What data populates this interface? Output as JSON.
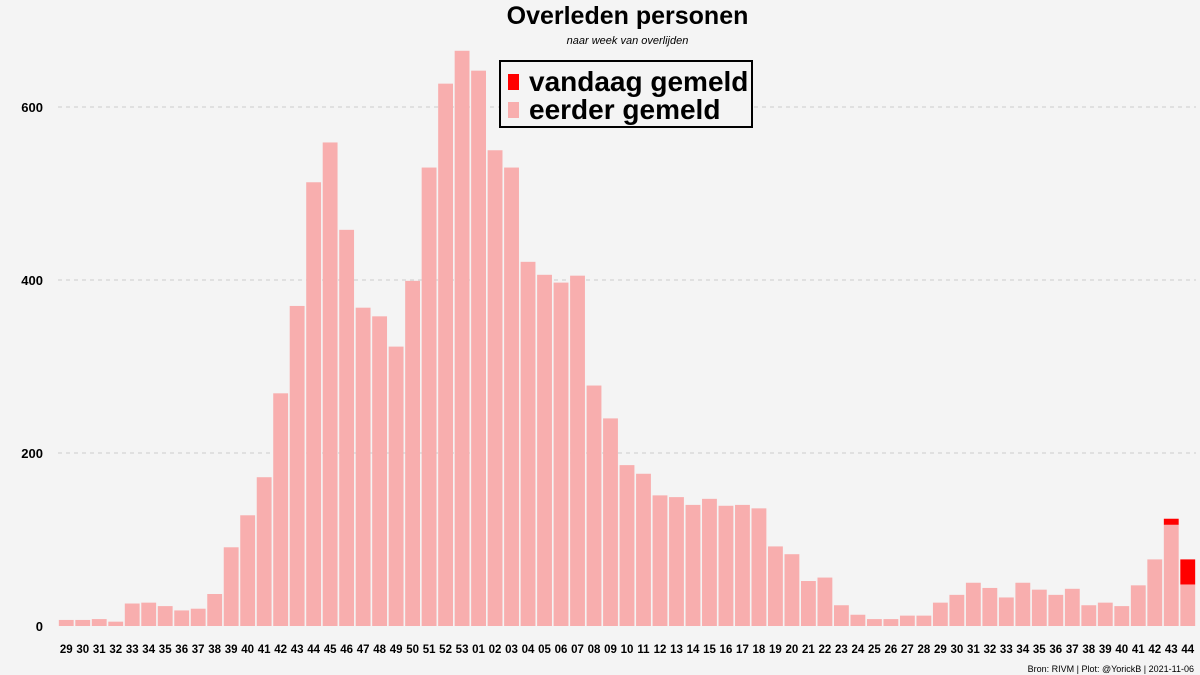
{
  "chart_data": {
    "type": "bar",
    "stacked": true,
    "title": "Overleden personen",
    "subtitle": "naar week van overlijden",
    "xlabel": "",
    "ylabel": "",
    "ylim": [
      0,
      680
    ],
    "yticks": [
      0,
      200,
      400,
      600
    ],
    "grid": "horizontal dashed",
    "legend_position": "top-center",
    "categories": [
      "29",
      "30",
      "31",
      "32",
      "33",
      "34",
      "35",
      "36",
      "37",
      "38",
      "39",
      "40",
      "41",
      "42",
      "43",
      "44",
      "45",
      "46",
      "47",
      "48",
      "49",
      "50",
      "51",
      "52",
      "53",
      "01",
      "02",
      "03",
      "04",
      "05",
      "06",
      "07",
      "08",
      "09",
      "10",
      "11",
      "12",
      "13",
      "14",
      "15",
      "16",
      "17",
      "18",
      "19",
      "20",
      "21",
      "22",
      "23",
      "24",
      "25",
      "26",
      "27",
      "28",
      "29",
      "30",
      "31",
      "32",
      "33",
      "34",
      "35",
      "36",
      "37",
      "38",
      "39",
      "40",
      "41",
      "42",
      "43",
      "44"
    ],
    "series": [
      {
        "name": "eerder gemeld",
        "color": "#f8aeae",
        "values": [
          7,
          7,
          8,
          5,
          26,
          27,
          23,
          18,
          20,
          37,
          91,
          128,
          172,
          269,
          370,
          513,
          559,
          458,
          368,
          358,
          323,
          399,
          530,
          627,
          665,
          642,
          550,
          530,
          421,
          406,
          397,
          405,
          278,
          240,
          186,
          176,
          151,
          149,
          140,
          147,
          139,
          140,
          136,
          92,
          83,
          52,
          56,
          24,
          13,
          8,
          8,
          12,
          12,
          27,
          36,
          50,
          44,
          33,
          50,
          42,
          36,
          43,
          24,
          27,
          23,
          47,
          77,
          117,
          48
        ]
      },
      {
        "name": "vandaag gemeld",
        "color": "#ff0000",
        "values": [
          0,
          0,
          0,
          0,
          0,
          0,
          0,
          0,
          0,
          0,
          0,
          0,
          0,
          0,
          0,
          0,
          0,
          0,
          0,
          0,
          0,
          0,
          0,
          0,
          0,
          0,
          0,
          0,
          0,
          0,
          0,
          0,
          0,
          0,
          0,
          0,
          0,
          0,
          0,
          0,
          0,
          0,
          0,
          0,
          0,
          0,
          0,
          0,
          0,
          0,
          0,
          0,
          0,
          0,
          0,
          0,
          0,
          0,
          0,
          0,
          0,
          0,
          0,
          0,
          0,
          0,
          0,
          7,
          29
        ]
      }
    ]
  },
  "legend": {
    "today_label": "vandaag gemeld",
    "earlier_label": "eerder gemeld",
    "today_color": "#ff0000",
    "earlier_color": "#f8aeae"
  },
  "footer": "Bron: RIVM | Plot: @YorickB |  2021-11-06"
}
